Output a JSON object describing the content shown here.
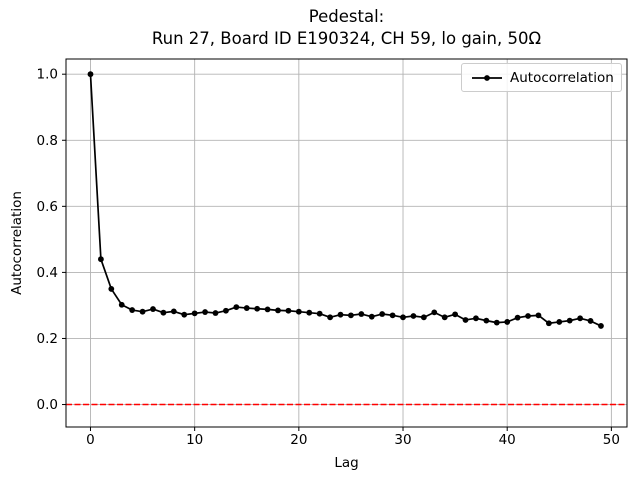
{
  "title": {
    "line1": "Pedestal:",
    "line2": "Run 27, Board ID E190324, CH 59, lo gain, 50Ω"
  },
  "legend": {
    "label": "Autocorrelation"
  },
  "axes": {
    "xlabel": "Lag",
    "ylabel": "Autocorrelation",
    "x_tick_labels": [
      "0",
      "10",
      "20",
      "30",
      "40",
      "50"
    ],
    "x_tick_values": [
      0,
      10,
      20,
      30,
      40,
      50
    ],
    "y_tick_labels": [
      "0.0",
      "0.2",
      "0.4",
      "0.6",
      "0.8",
      "1.0"
    ],
    "y_tick_values": [
      0.0,
      0.2,
      0.4,
      0.6,
      0.8,
      1.0
    ]
  },
  "colors": {
    "series": "#000000",
    "zero_line": "#ff0000",
    "grid": "#b3b3b3",
    "spine": "#000000",
    "legend_edge": "#cccccc",
    "background": "#ffffff",
    "text": "#000000"
  },
  "chart_data": {
    "type": "line",
    "title": "Pedestal:\nRun 27, Board ID E190324, CH 59, lo gain, 50Ω",
    "xlabel": "Lag",
    "ylabel": "Autocorrelation",
    "xlim": [
      -2.35,
      51.5
    ],
    "ylim": [
      -0.068,
      1.046
    ],
    "grid": true,
    "legend_position": "upper right",
    "series": [
      {
        "name": "Autocorrelation",
        "color": "#000000",
        "marker": "point",
        "linestyle": "solid",
        "x": [
          0,
          1,
          2,
          3,
          4,
          5,
          6,
          7,
          8,
          9,
          10,
          11,
          12,
          13,
          14,
          15,
          16,
          17,
          18,
          19,
          20,
          21,
          22,
          23,
          24,
          25,
          26,
          27,
          28,
          29,
          30,
          31,
          32,
          33,
          34,
          35,
          36,
          37,
          38,
          39,
          40,
          41,
          42,
          43,
          44,
          45,
          46,
          47,
          48,
          49
        ],
        "y": [
          1.0,
          0.44,
          0.35,
          0.302,
          0.286,
          0.281,
          0.289,
          0.278,
          0.282,
          0.272,
          0.276,
          0.28,
          0.277,
          0.284,
          0.295,
          0.292,
          0.29,
          0.288,
          0.285,
          0.284,
          0.281,
          0.278,
          0.275,
          0.264,
          0.272,
          0.27,
          0.274,
          0.266,
          0.274,
          0.27,
          0.264,
          0.268,
          0.264,
          0.279,
          0.264,
          0.273,
          0.256,
          0.261,
          0.254,
          0.248,
          0.25,
          0.263,
          0.268,
          0.27,
          0.246,
          0.25,
          0.254,
          0.261,
          0.253,
          0.238
        ]
      }
    ],
    "annotations": [
      {
        "type": "hline",
        "y": 0.0,
        "color": "#ff0000",
        "linestyle": "dashed"
      }
    ]
  }
}
